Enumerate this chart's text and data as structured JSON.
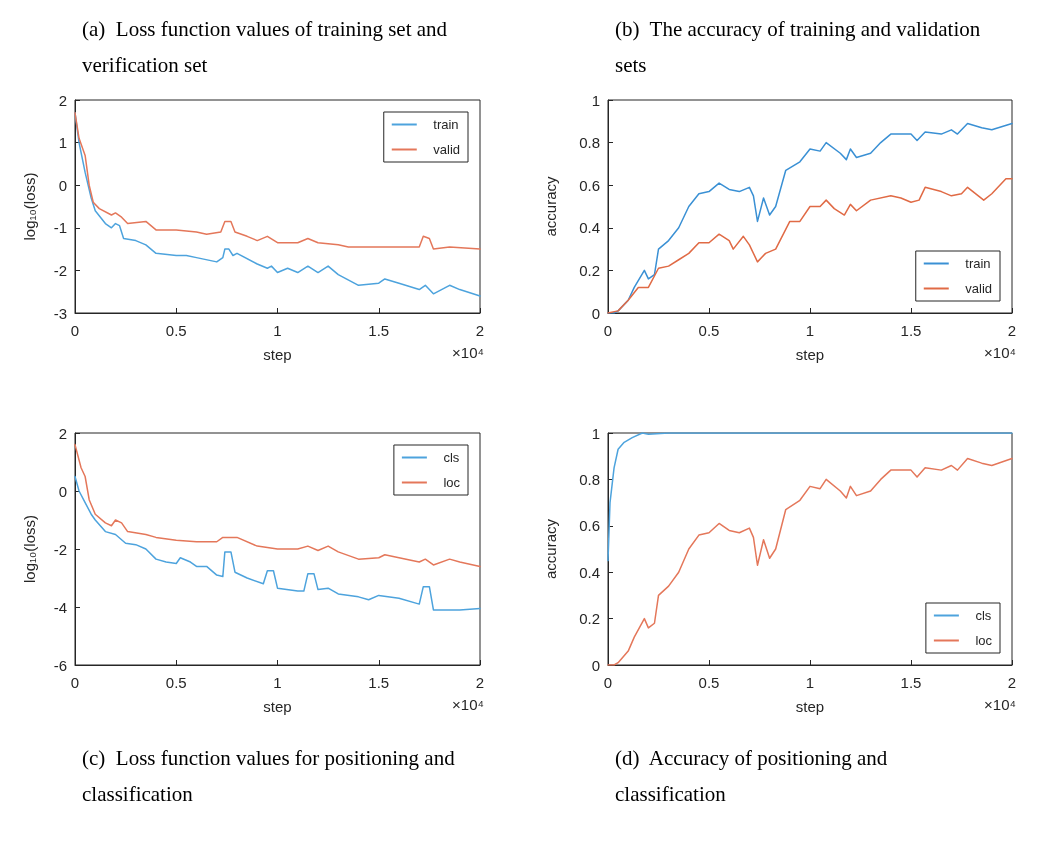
{
  "chart_data": [
    {
      "type": "line",
      "title": "(a)  Loss function values of training set and verification set",
      "xlabel": "step",
      "ylabel": "log₁₀(loss)",
      "annotations": [
        "×10⁴"
      ],
      "xlim": [
        0,
        2
      ],
      "xticks": [
        0,
        0.5,
        1,
        1.5,
        2
      ],
      "ylim": [
        -3,
        2
      ],
      "yticks": [
        -3,
        -2,
        -1,
        0,
        1,
        2
      ],
      "grid": false,
      "legend": "top right",
      "marker": "none",
      "series": [
        {
          "name": "train",
          "color": "#4da3dd",
          "x": [
            0,
            0.02,
            0.05,
            0.08,
            0.1,
            0.15,
            0.18,
            0.2,
            0.22,
            0.24,
            0.3,
            0.35,
            0.4,
            0.5,
            0.55,
            0.6,
            0.7,
            0.73,
            0.74,
            0.76,
            0.78,
            0.8,
            0.9,
            0.95,
            0.97,
            1.0,
            1.05,
            1.1,
            1.15,
            1.2,
            1.25,
            1.3,
            1.4,
            1.5,
            1.53,
            1.6,
            1.7,
            1.73,
            1.77,
            1.85,
            1.9,
            2.0
          ],
          "values": [
            1.7,
            1.0,
            0.3,
            -0.3,
            -0.6,
            -0.9,
            -1.0,
            -0.9,
            -0.95,
            -1.25,
            -1.3,
            -1.4,
            -1.6,
            -1.65,
            -1.65,
            -1.7,
            -1.8,
            -1.7,
            -1.5,
            -1.5,
            -1.65,
            -1.6,
            -1.85,
            -1.95,
            -1.9,
            -2.05,
            -1.95,
            -2.05,
            -1.9,
            -2.05,
            -1.9,
            -2.1,
            -2.35,
            -2.3,
            -2.2,
            -2.3,
            -2.45,
            -2.35,
            -2.55,
            -2.35,
            -2.45,
            -2.6
          ]
        },
        {
          "name": "valid",
          "color": "#e4775a",
          "x": [
            0,
            0.02,
            0.05,
            0.07,
            0.09,
            0.12,
            0.18,
            0.2,
            0.23,
            0.26,
            0.35,
            0.4,
            0.5,
            0.6,
            0.65,
            0.72,
            0.74,
            0.77,
            0.79,
            0.85,
            0.9,
            0.95,
            1.0,
            1.1,
            1.15,
            1.2,
            1.3,
            1.35,
            1.6,
            1.7,
            1.72,
            1.75,
            1.77,
            1.85,
            2.0
          ],
          "values": [
            1.7,
            1.1,
            0.7,
            0.0,
            -0.4,
            -0.55,
            -0.7,
            -0.65,
            -0.75,
            -0.9,
            -0.85,
            -1.05,
            -1.05,
            -1.1,
            -1.15,
            -1.1,
            -0.85,
            -0.85,
            -1.1,
            -1.2,
            -1.3,
            -1.2,
            -1.35,
            -1.35,
            -1.25,
            -1.35,
            -1.4,
            -1.45,
            -1.45,
            -1.45,
            -1.2,
            -1.25,
            -1.5,
            -1.45,
            -1.5
          ]
        }
      ]
    },
    {
      "type": "line",
      "title": "(b)  The accuracy of training and validation sets",
      "xlabel": "step",
      "ylabel": "accuracy",
      "annotations": [
        "×10⁴"
      ],
      "xlim": [
        0,
        2
      ],
      "xticks": [
        0,
        0.5,
        1,
        1.5,
        2
      ],
      "ylim": [
        0,
        1
      ],
      "yticks": [
        0,
        0.2,
        0.4,
        0.6,
        0.8,
        1
      ],
      "grid": false,
      "legend": "bottom right",
      "marker": "none",
      "series": [
        {
          "name": "train",
          "color": "#3a90d4",
          "x": [
            0,
            0.03,
            0.05,
            0.1,
            0.13,
            0.18,
            0.2,
            0.23,
            0.25,
            0.3,
            0.35,
            0.4,
            0.45,
            0.5,
            0.55,
            0.6,
            0.65,
            0.7,
            0.72,
            0.74,
            0.77,
            0.8,
            0.83,
            0.88,
            0.95,
            1.0,
            1.05,
            1.08,
            1.15,
            1.18,
            1.2,
            1.23,
            1.3,
            1.35,
            1.4,
            1.5,
            1.53,
            1.57,
            1.65,
            1.7,
            1.73,
            1.78,
            1.85,
            1.9,
            2.0
          ],
          "values": [
            0,
            0,
            0.01,
            0.06,
            0.12,
            0.2,
            0.16,
            0.18,
            0.3,
            0.34,
            0.4,
            0.5,
            0.56,
            0.57,
            0.61,
            0.58,
            0.57,
            0.59,
            0.55,
            0.43,
            0.54,
            0.46,
            0.5,
            0.67,
            0.71,
            0.77,
            0.76,
            0.8,
            0.75,
            0.72,
            0.77,
            0.73,
            0.75,
            0.8,
            0.84,
            0.84,
            0.81,
            0.85,
            0.84,
            0.86,
            0.84,
            0.89,
            0.87,
            0.86,
            0.89
          ]
        },
        {
          "name": "valid",
          "color": "#e06a45",
          "x": [
            0,
            0.05,
            0.1,
            0.15,
            0.2,
            0.25,
            0.3,
            0.35,
            0.4,
            0.45,
            0.5,
            0.55,
            0.6,
            0.62,
            0.67,
            0.7,
            0.74,
            0.78,
            0.83,
            0.9,
            0.95,
            1.0,
            1.05,
            1.08,
            1.12,
            1.17,
            1.2,
            1.23,
            1.3,
            1.4,
            1.45,
            1.5,
            1.54,
            1.57,
            1.65,
            1.7,
            1.75,
            1.78,
            1.86,
            1.9,
            1.97,
            2.0
          ],
          "values": [
            0,
            0.01,
            0.06,
            0.12,
            0.12,
            0.21,
            0.22,
            0.25,
            0.28,
            0.33,
            0.33,
            0.37,
            0.34,
            0.3,
            0.36,
            0.32,
            0.24,
            0.28,
            0.3,
            0.43,
            0.43,
            0.5,
            0.5,
            0.53,
            0.49,
            0.46,
            0.51,
            0.48,
            0.53,
            0.55,
            0.54,
            0.52,
            0.53,
            0.59,
            0.57,
            0.55,
            0.56,
            0.59,
            0.53,
            0.56,
            0.63,
            0.63
          ]
        }
      ]
    },
    {
      "type": "line",
      "title": "(c)  Loss function values for positioning and classification",
      "xlabel": "step",
      "ylabel": "log₁₀(loss)",
      "annotations": [
        "×10⁴"
      ],
      "xlim": [
        0,
        2
      ],
      "xticks": [
        0,
        0.5,
        1,
        1.5,
        2
      ],
      "ylim": [
        -6,
        2
      ],
      "yticks": [
        -6,
        -4,
        -2,
        0,
        2
      ],
      "grid": false,
      "legend": "top right",
      "marker": "none",
      "series": [
        {
          "name": "cls",
          "color": "#4da3dd",
          "x": [
            0,
            0.02,
            0.05,
            0.08,
            0.1,
            0.15,
            0.2,
            0.25,
            0.3,
            0.35,
            0.4,
            0.45,
            0.5,
            0.52,
            0.57,
            0.6,
            0.65,
            0.7,
            0.73,
            0.74,
            0.77,
            0.79,
            0.85,
            0.93,
            0.95,
            0.98,
            1.0,
            1.1,
            1.13,
            1.15,
            1.18,
            1.2,
            1.25,
            1.3,
            1.4,
            1.45,
            1.5,
            1.6,
            1.7,
            1.72,
            1.75,
            1.77,
            1.9,
            2.0
          ],
          "values": [
            0.5,
            0.0,
            -0.4,
            -0.8,
            -1.0,
            -1.4,
            -1.5,
            -1.8,
            -1.85,
            -2.0,
            -2.35,
            -2.45,
            -2.5,
            -2.3,
            -2.45,
            -2.6,
            -2.6,
            -2.9,
            -2.95,
            -2.1,
            -2.1,
            -2.8,
            -3.0,
            -3.2,
            -2.75,
            -2.75,
            -3.35,
            -3.45,
            -3.45,
            -2.85,
            -2.85,
            -3.4,
            -3.35,
            -3.55,
            -3.65,
            -3.75,
            -3.6,
            -3.7,
            -3.9,
            -3.3,
            -3.3,
            -4.1,
            -4.1,
            -4.05
          ]
        },
        {
          "name": "loc",
          "color": "#e4775a",
          "x": [
            0,
            0.03,
            0.05,
            0.07,
            0.1,
            0.15,
            0.18,
            0.2,
            0.23,
            0.26,
            0.35,
            0.4,
            0.5,
            0.6,
            0.7,
            0.73,
            0.77,
            0.8,
            0.9,
            1.0,
            1.1,
            1.15,
            1.2,
            1.25,
            1.3,
            1.4,
            1.5,
            1.53,
            1.6,
            1.7,
            1.73,
            1.77,
            1.85,
            1.9,
            2.0
          ],
          "values": [
            1.6,
            0.8,
            0.5,
            -0.3,
            -0.8,
            -1.1,
            -1.2,
            -1.0,
            -1.1,
            -1.4,
            -1.5,
            -1.6,
            -1.7,
            -1.75,
            -1.75,
            -1.6,
            -1.6,
            -1.6,
            -1.9,
            -2.0,
            -2.0,
            -1.9,
            -2.05,
            -1.9,
            -2.1,
            -2.35,
            -2.3,
            -2.2,
            -2.3,
            -2.45,
            -2.35,
            -2.55,
            -2.35,
            -2.45,
            -2.6
          ]
        }
      ]
    },
    {
      "type": "line",
      "title": "(d)  Accuracy of positioning and classification",
      "xlabel": "step",
      "ylabel": "accuracy",
      "annotations": [
        "×10⁴"
      ],
      "xlim": [
        0,
        2
      ],
      "xticks": [
        0,
        0.5,
        1,
        1.5,
        2
      ],
      "ylim": [
        0,
        1
      ],
      "yticks": [
        0,
        0.2,
        0.4,
        0.6,
        0.8,
        1
      ],
      "grid": false,
      "legend": "bottom right",
      "marker": "none",
      "series": [
        {
          "name": "cls",
          "color": "#4da3dd",
          "x": [
            0,
            0.01,
            0.03,
            0.05,
            0.08,
            0.12,
            0.17,
            0.2,
            0.3,
            2.0
          ],
          "values": [
            0.45,
            0.7,
            0.85,
            0.93,
            0.96,
            0.98,
            1.0,
            0.995,
            1.0,
            1.0
          ]
        },
        {
          "name": "loc",
          "color": "#e4775a",
          "x": [
            0,
            0.03,
            0.05,
            0.1,
            0.13,
            0.18,
            0.2,
            0.23,
            0.25,
            0.3,
            0.35,
            0.4,
            0.45,
            0.5,
            0.55,
            0.6,
            0.65,
            0.7,
            0.72,
            0.74,
            0.77,
            0.8,
            0.83,
            0.88,
            0.95,
            1.0,
            1.05,
            1.08,
            1.15,
            1.18,
            1.2,
            1.23,
            1.3,
            1.35,
            1.4,
            1.5,
            1.53,
            1.57,
            1.65,
            1.7,
            1.73,
            1.78,
            1.85,
            1.9,
            2.0
          ],
          "values": [
            0,
            0,
            0.01,
            0.06,
            0.12,
            0.2,
            0.16,
            0.18,
            0.3,
            0.34,
            0.4,
            0.5,
            0.56,
            0.57,
            0.61,
            0.58,
            0.57,
            0.59,
            0.55,
            0.43,
            0.54,
            0.46,
            0.5,
            0.67,
            0.71,
            0.77,
            0.76,
            0.8,
            0.75,
            0.72,
            0.77,
            0.73,
            0.75,
            0.8,
            0.84,
            0.84,
            0.81,
            0.85,
            0.84,
            0.86,
            0.84,
            0.89,
            0.87,
            0.86,
            0.89
          ]
        }
      ]
    }
  ]
}
